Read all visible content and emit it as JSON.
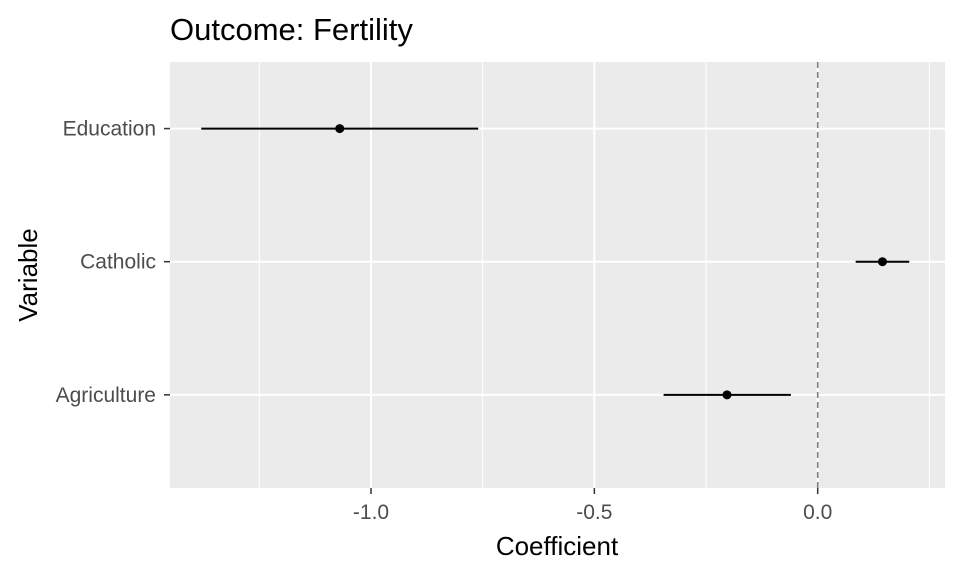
{
  "chart_data": {
    "type": "coefficient-plot",
    "title": "Outcome: Fertility",
    "xlabel": "Coefficient",
    "ylabel": "Variable",
    "xlim": [
      -1.45,
      0.285
    ],
    "x_ticks": [
      -1.0,
      -0.5,
      0.0
    ],
    "x_tick_labels": [
      "-1.0",
      "-0.5",
      "0.0"
    ],
    "reference_line": {
      "x": 0,
      "style": "dashed"
    },
    "grid": true,
    "categories": [
      "Education",
      "Catholic",
      "Agriculture"
    ],
    "estimates": [
      {
        "variable": "Education",
        "estimate": -1.07,
        "lower": -1.38,
        "upper": -0.76
      },
      {
        "variable": "Catholic",
        "estimate": 0.145,
        "lower": 0.085,
        "upper": 0.205
      },
      {
        "variable": "Agriculture",
        "estimate": -0.203,
        "lower": -0.345,
        "upper": -0.06
      }
    ],
    "colors": {
      "panel_background": "#ebebeb",
      "grid": "#ffffff",
      "marks": "#000000",
      "reference_line": "#7f7f7f"
    }
  }
}
